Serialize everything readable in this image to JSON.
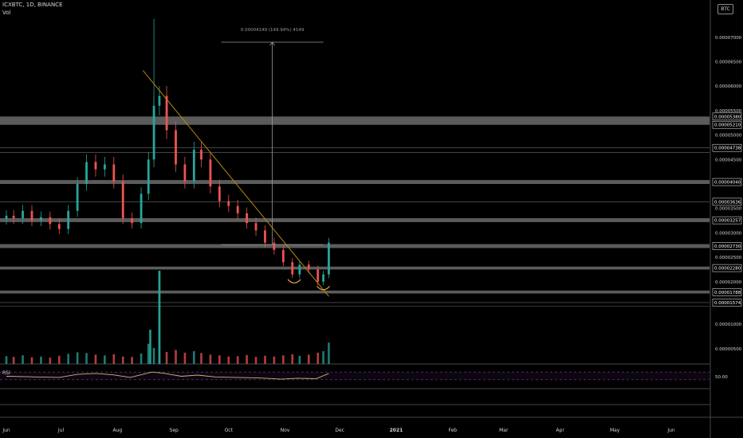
{
  "header": {
    "symbol_line": "ICXBTC, 1D, BINANCE",
    "volume_label": "Vol",
    "currency_badge": "BTC"
  },
  "measure": {
    "label": "0.00004149 (149.94%) 4149",
    "from": 2.76e-05,
    "to": 6.9e-05,
    "start_date": "2020-09-27",
    "end_date": "2020-11-22"
  },
  "trendline": {
    "from_date": "2020-08-15",
    "from_value": 6.32e-05,
    "to_date": "2020-11-25",
    "to_value": 1.7e-05
  },
  "arcs": [
    {
      "date": "2020-11-06",
      "value": 2e-05
    },
    {
      "date": "2020-11-22",
      "value": 1.86e-05
    }
  ],
  "chart_data": {
    "type": "candlestick",
    "symbol": "ICXBTC",
    "interval": "1D",
    "exchange": "BINANCE",
    "currency": "BTC",
    "x_axis_ticks": [
      "Jun",
      "Jul",
      "Aug",
      "Sep",
      "Oct",
      "Nov",
      "Dec",
      "2021",
      "Feb",
      "Mar",
      "Apr",
      "May",
      "Jun"
    ],
    "price_axis_ticks": [
      "0.00007000",
      "0.00006500",
      "0.00006000",
      "0.00005500",
      "0.00005000",
      "0.00004500",
      "0.00004000",
      "0.00003500",
      "0.00003000",
      "0.00002500",
      "0.00002000",
      "0.00001000",
      "0.00000500"
    ],
    "price_range": [
      1.28e-05,
      7.6e-05
    ],
    "highlighted_levels": [
      {
        "label": "0.00005380",
        "value": 5.38e-05
      },
      {
        "label": "0.00005210",
        "value": 5.21e-05
      },
      {
        "label": "0.00004738",
        "value": 4.738e-05
      },
      {
        "label": "0.00004040",
        "value": 4.04e-05
      },
      {
        "label": "0.00003636",
        "value": 3.636e-05
      },
      {
        "label": "0.00003257",
        "value": 3.257e-05
      },
      {
        "label": "0.00002730",
        "value": 2.73e-05
      },
      {
        "label": "0.00002280",
        "value": 2.28e-05
      },
      {
        "label": "0.00001788",
        "value": 1.788e-05
      },
      {
        "label": "0.00001574",
        "value": 1.574e-05
      }
    ],
    "resistance_bands": [
      {
        "low": 5.21e-05,
        "high": 5.38e-05
      },
      {
        "low": 4e-05,
        "high": 4.08e-05
      },
      {
        "low": 3.22e-05,
        "high": 3.3e-05
      },
      {
        "low": 2.69e-05,
        "high": 2.77e-05
      },
      {
        "low": 2.25e-05,
        "high": 2.31e-05
      },
      {
        "low": 1.76e-05,
        "high": 1.82e-05
      }
    ],
    "thin_lines": [
      4.738e-05,
      4.64e-05,
      3.636e-05,
      1.574e-05,
      1.5e-05
    ],
    "candles": [
      {
        "date": "2020-06-01",
        "close": 3.35e-05
      },
      {
        "date": "2020-06-05",
        "close": 3.3e-05
      },
      {
        "date": "2020-06-10",
        "close": 3.45e-05
      },
      {
        "date": "2020-06-15",
        "close": 3.25e-05
      },
      {
        "date": "2020-06-20",
        "close": 3.32e-05
      },
      {
        "date": "2020-06-25",
        "close": 3.18e-05
      },
      {
        "date": "2020-06-30",
        "close": 3.08e-05
      },
      {
        "date": "2020-07-05",
        "close": 3.45e-05
      },
      {
        "date": "2020-07-10",
        "close": 4e-05
      },
      {
        "date": "2020-07-15",
        "close": 4.45e-05
      },
      {
        "date": "2020-07-20",
        "close": 4.3e-05
      },
      {
        "date": "2020-07-25",
        "close": 4.4e-05
      },
      {
        "date": "2020-07-30",
        "close": 4.05e-05
      },
      {
        "date": "2020-08-04",
        "close": 3.3e-05
      },
      {
        "date": "2020-08-09",
        "close": 3.2e-05
      },
      {
        "date": "2020-08-14",
        "close": 3.8e-05
      },
      {
        "date": "2020-08-18",
        "close": 4.5e-05
      },
      {
        "date": "2020-08-21",
        "close": 5.6e-05
      },
      {
        "date": "2020-08-24",
        "close": 5.8e-05
      },
      {
        "date": "2020-08-28",
        "close": 5.1e-05
      },
      {
        "date": "2020-09-02",
        "close": 4.4e-05
      },
      {
        "date": "2020-09-07",
        "close": 4.05e-05
      },
      {
        "date": "2020-09-12",
        "close": 4.7e-05
      },
      {
        "date": "2020-09-16",
        "close": 4.5e-05
      },
      {
        "date": "2020-09-21",
        "close": 3.95e-05
      },
      {
        "date": "2020-09-26",
        "close": 3.65e-05
      },
      {
        "date": "2020-10-01",
        "close": 3.55e-05
      },
      {
        "date": "2020-10-06",
        "close": 3.4e-05
      },
      {
        "date": "2020-10-11",
        "close": 3.2e-05
      },
      {
        "date": "2020-10-16",
        "close": 3.05e-05
      },
      {
        "date": "2020-10-21",
        "close": 2.8e-05
      },
      {
        "date": "2020-10-26",
        "close": 2.65e-05
      },
      {
        "date": "2020-10-31",
        "close": 2.4e-05
      },
      {
        "date": "2020-11-05",
        "close": 2.15e-05
      },
      {
        "date": "2020-11-09",
        "close": 2.35e-05
      },
      {
        "date": "2020-11-14",
        "close": 2.25e-05
      },
      {
        "date": "2020-11-19",
        "close": 2e-05
      },
      {
        "date": "2020-11-22",
        "close": 2.15e-05
      },
      {
        "date": "2020-11-25",
        "close": 2.8e-05
      }
    ],
    "volume_scale_ticks": [
      "0.00000500"
    ],
    "volume_spikes": [
      {
        "date": "2020-08-19",
        "volume": 8.8e-06
      },
      {
        "date": "2020-08-24",
        "volume": 2.4e-05
      }
    ],
    "indicator": {
      "name": "RSI",
      "level_label": "50.00",
      "level": 50,
      "band": [
        30,
        70
      ],
      "last_value": 62,
      "values": [
        {
          "date": "2020-06-01",
          "v": 48
        },
        {
          "date": "2020-06-15",
          "v": 45
        },
        {
          "date": "2020-06-30",
          "v": 42
        },
        {
          "date": "2020-07-10",
          "v": 58
        },
        {
          "date": "2020-07-20",
          "v": 63
        },
        {
          "date": "2020-07-30",
          "v": 55
        },
        {
          "date": "2020-08-08",
          "v": 42
        },
        {
          "date": "2020-08-20",
          "v": 70
        },
        {
          "date": "2020-08-26",
          "v": 64
        },
        {
          "date": "2020-09-05",
          "v": 48
        },
        {
          "date": "2020-09-14",
          "v": 54
        },
        {
          "date": "2020-09-24",
          "v": 44
        },
        {
          "date": "2020-10-05",
          "v": 42
        },
        {
          "date": "2020-10-18",
          "v": 39
        },
        {
          "date": "2020-10-30",
          "v": 33
        },
        {
          "date": "2020-11-08",
          "v": 38
        },
        {
          "date": "2020-11-18",
          "v": 35
        },
        {
          "date": "2020-11-25",
          "v": 62
        }
      ]
    }
  }
}
